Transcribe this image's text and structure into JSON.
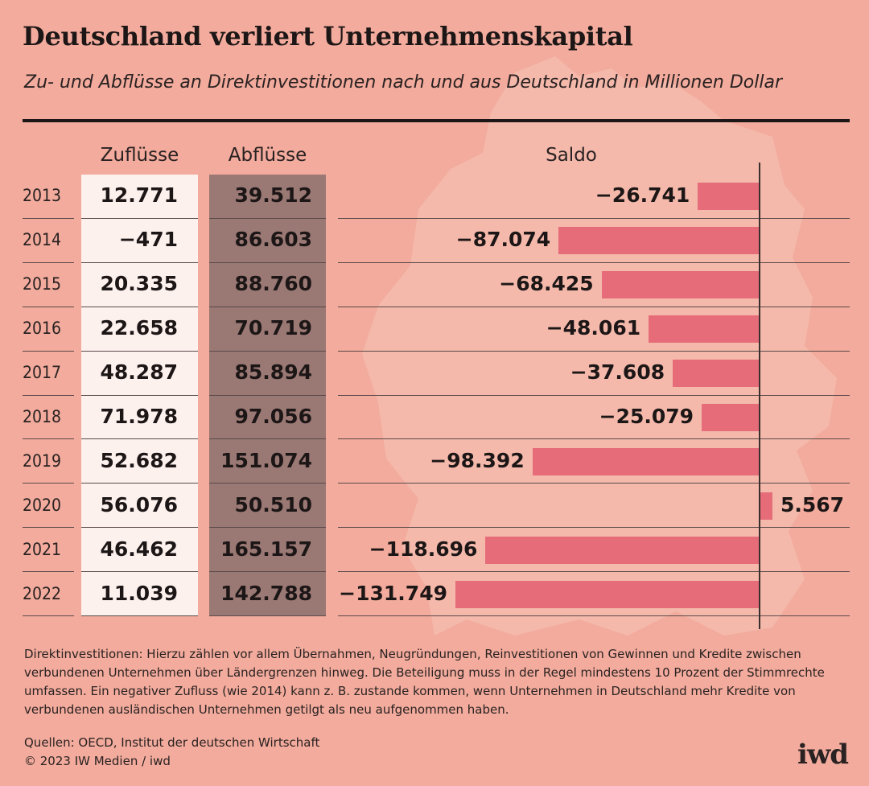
{
  "colors": {
    "background": "#f2ab9c",
    "inflow_column": "#fdf1ee",
    "outflow_column": "#9a7874",
    "bar": "#e66c7a",
    "text": "#1c1616"
  },
  "header": {
    "title": "Deutschland verliert Unternehmenskapital",
    "subtitle": "Zu- und Abflüsse an Direktinvestitionen nach und aus Deutschland in Millionen Dollar"
  },
  "columns": {
    "inflows": "Zuflüsse",
    "outflows": "Abflüsse",
    "balance": "Saldo"
  },
  "chart_data": {
    "type": "bar",
    "title": "Deutschland verliert Unternehmenskapital",
    "subtitle": "Zu- und Abflüsse an Direktinvestitionen nach und aus Deutschland in Millionen Dollar",
    "unit": "Millionen Dollar",
    "categories": [
      "2013",
      "2014",
      "2015",
      "2016",
      "2017",
      "2018",
      "2019",
      "2020",
      "2021",
      "2022"
    ],
    "series": [
      {
        "name": "Zuflüsse",
        "values": [
          12771,
          -471,
          20335,
          22658,
          48287,
          71978,
          52682,
          56076,
          46462,
          11039
        ],
        "labels": [
          "12.771",
          "−471",
          "20.335",
          "22.658",
          "48.287",
          "71.978",
          "52.682",
          "56.076",
          "46.462",
          "11.039"
        ]
      },
      {
        "name": "Abflüsse",
        "values": [
          39512,
          86603,
          88760,
          70719,
          85894,
          97056,
          151074,
          50510,
          165157,
          142788
        ],
        "labels": [
          "39.512",
          "86.603",
          "88.760",
          "70.719",
          "85.894",
          "97.056",
          "151.074",
          "50.510",
          "165.157",
          "142.788"
        ]
      },
      {
        "name": "Saldo",
        "values": [
          -26741,
          -87074,
          -68425,
          -48061,
          -37608,
          -25079,
          -98392,
          5567,
          -118696,
          -131749
        ],
        "labels": [
          "−26.741",
          "−87.074",
          "−68.425",
          "−48.061",
          "−37.608",
          "−25.079",
          "−98.392",
          "5.567",
          "−118.696",
          "−131.749"
        ]
      }
    ],
    "orientation": "horizontal",
    "grid": false
  },
  "footer": {
    "note": "Direktinvestitionen: Hierzu zählen vor allem Übernahmen, Neugründungen, Reinvestitionen von Gewinnen und Kredite zwischen verbundenen Unternehmen über Ländergrenzen hinweg. Die Beteiligung muss in der Regel mindestens 10 Prozent der Stimmrechte umfassen. Ein negativer Zufluss (wie 2014) kann z. B. zustande kommen, wenn Unternehmen in Deutschland mehr Kredite von verbundenen ausländischen Unternehmen getilgt als neu aufgenommen haben.",
    "sources": "Quellen: OECD, Institut der deutschen Wirtschaft",
    "copyright": "© 2023 IW Medien / iwd",
    "logo": "iwd"
  }
}
